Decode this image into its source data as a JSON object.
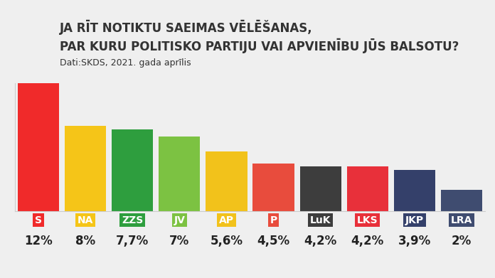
{
  "chart_data": {
    "type": "bar",
    "title": "JA RĪT NOTIKTU SAEIMAS VĒLĒŠANAS,\nPAR KURU POLITISKO PARTIJU VAI APVIENĪBU JŪS BALSOTU?",
    "subtitle": "Dati:SKDS, 2021. gada aprīlis",
    "categories": [
      "S",
      "NA",
      "ZZS",
      "JV",
      "AP",
      "P",
      "LuK",
      "LKS",
      "JKP",
      "LRA"
    ],
    "values": [
      12,
      8,
      7.7,
      7,
      5.6,
      4.5,
      4.2,
      4.2,
      3.9,
      2
    ],
    "value_labels": [
      "12%",
      "8%",
      "7,7%",
      "7%",
      "5,6%",
      "4,5%",
      "4,2%",
      "4,2%",
      "3,9%",
      "2%"
    ],
    "colors": [
      "#f02a2a",
      "#f5c518",
      "#2e9e3e",
      "#7cc242",
      "#f2c21b",
      "#e84c3d",
      "#3d3d3d",
      "#e8303a",
      "#34406a",
      "#3f4c70"
    ],
    "ylim": [
      0,
      12
    ],
    "data_labels": true,
    "tick_labels": "x",
    "grid": false
  }
}
